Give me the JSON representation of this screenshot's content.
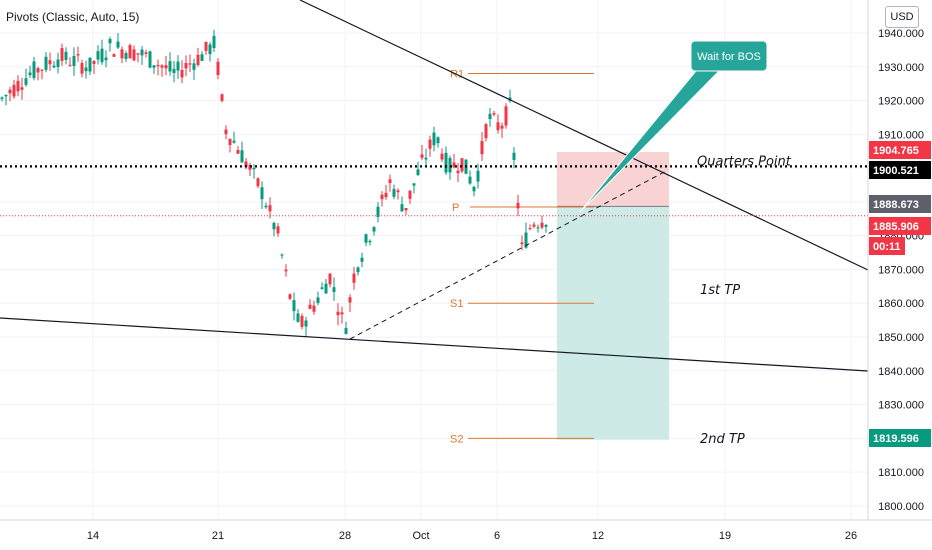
{
  "header": {
    "indicator_label": "Pivots (Classic, Auto, 15)",
    "currency": "USD"
  },
  "chart_data": {
    "type": "candlestick",
    "y_axis_ticks": [
      "1940.000",
      "1930.000",
      "1920.000",
      "1910.000",
      "1900.000",
      "1890.000",
      "1880.000",
      "1870.000",
      "1860.000",
      "1850.000",
      "1840.000",
      "1830.000",
      "1820.000",
      "1810.000",
      "1800.000"
    ],
    "x_axis_ticks": [
      "14",
      "21",
      "28",
      "Oct",
      "6",
      "12",
      "19",
      "26"
    ],
    "pivots": [
      {
        "label": "R1",
        "value": 1928.0
      },
      {
        "label": "P",
        "value": 1888.5
      },
      {
        "label": "S1",
        "value": 1860.0
      },
      {
        "label": "S2",
        "value": 1820.0
      }
    ],
    "price_tags": [
      {
        "value": "1904.765",
        "color": "#f23645"
      },
      {
        "value": "1900.521",
        "color": "#000000"
      },
      {
        "value": "1888.673",
        "color": "#5d606b"
      },
      {
        "value": "1885.906",
        "color": "#f23645"
      },
      {
        "value": "00:11",
        "color": "#f23645"
      },
      {
        "value": "1819.596",
        "color": "#089981"
      }
    ],
    "annotations": {
      "quarters_point": "Quarters Point",
      "tp1": "1st TP",
      "tp2": "2nd TP",
      "callout": "Wait for BOS"
    },
    "position": {
      "entry": 1888.673,
      "stop": 1904.765,
      "target": 1819.596
    },
    "colors": {
      "up": "#089981",
      "down": "#f23645",
      "pivot": "#e2762f",
      "callout": "#26a69a",
      "stop_zone": "#f9d3d3",
      "target_zone": "#cdeae6"
    }
  }
}
